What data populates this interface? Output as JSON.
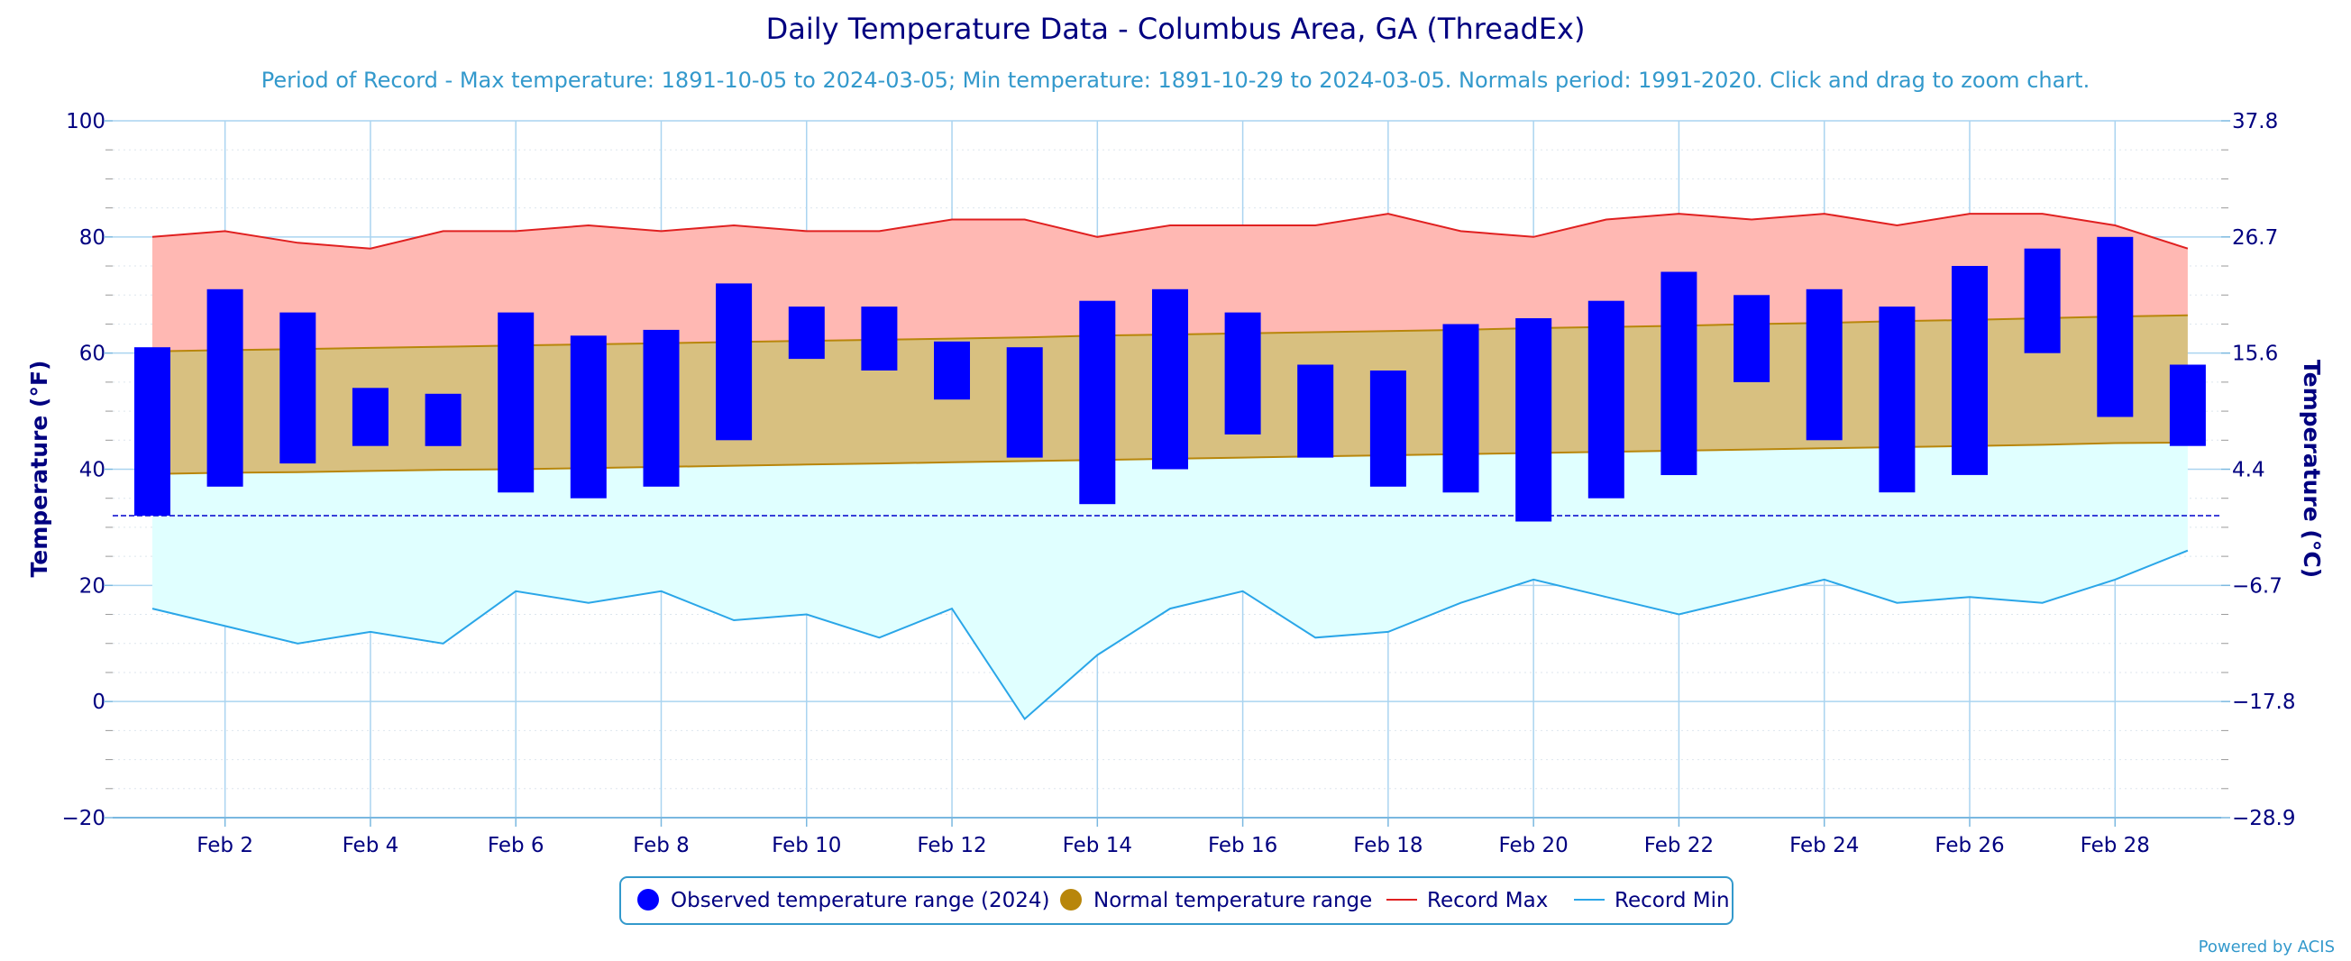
{
  "chart_data": {
    "type": "bar",
    "title": "Daily Temperature Data - Columbus Area, GA (ThreadEx)",
    "subtitle": "Period of Record - Max temperature: 1891-10-05 to 2024-03-05; Min temperature: 1891-10-29 to 2024-03-05. Normals period: 1991-2020. Click and drag to zoom chart.",
    "ylabel": "Temperature (°F)",
    "ylabel_right": "Temperature (°C)",
    "ylim": [
      -20,
      100
    ],
    "y_ticks": [
      "100",
      "80",
      "60",
      "40",
      "20",
      "0",
      "−20"
    ],
    "y_ticks_right": [
      "37.8",
      "26.7",
      "15.6",
      "4.4",
      "−6.7",
      "−17.8",
      "−28.9"
    ],
    "x_tick_labels": [
      "Feb 2",
      "Feb 4",
      "Feb 6",
      "Feb 8",
      "Feb 10",
      "Feb 12",
      "Feb 14",
      "Feb 16",
      "Feb 18",
      "Feb 20",
      "Feb 22",
      "Feb 24",
      "Feb 26",
      "Feb 28"
    ],
    "x_tick_days": [
      2,
      4,
      6,
      8,
      10,
      12,
      14,
      16,
      18,
      20,
      22,
      24,
      26,
      28
    ],
    "days": [
      1,
      2,
      3,
      4,
      5,
      6,
      7,
      8,
      9,
      10,
      11,
      12,
      13,
      14,
      15,
      16,
      17,
      18,
      19,
      20,
      21,
      22,
      23,
      24,
      25,
      26,
      27,
      28,
      29
    ],
    "freezing_line": 32,
    "grid": true,
    "legend_position": "bottom",
    "colors": {
      "observed": "#0000ff",
      "normal_fill": "#d8c080",
      "normal_line": "#b8860b",
      "record_max_fill": "#ffb8b3",
      "record_max_line": "#e02020",
      "record_min_fill": "#e0ffff",
      "record_min_line": "#2aa6e8",
      "grid": "#aad4f0",
      "text": "#000080"
    },
    "series": [
      {
        "name": "Observed temperature range (2024)",
        "type": "columnrange",
        "low": [
          32,
          37,
          41,
          44,
          44,
          36,
          35,
          37,
          45,
          59,
          57,
          52,
          42,
          34,
          40,
          46,
          42,
          37,
          36,
          31,
          35,
          39,
          55,
          45,
          36,
          39,
          60,
          49,
          44
        ],
        "high": [
          61,
          71,
          67,
          54,
          53,
          67,
          63,
          64,
          72,
          68,
          68,
          62,
          61,
          69,
          71,
          67,
          58,
          57,
          65,
          66,
          69,
          74,
          70,
          71,
          68,
          75,
          78,
          80,
          58
        ]
      },
      {
        "name": "Normal temperature range",
        "type": "arearange",
        "low": [
          39.2,
          39.4,
          39.5,
          39.7,
          39.9,
          40.0,
          40.2,
          40.4,
          40.6,
          40.8,
          41.0,
          41.2,
          41.4,
          41.6,
          41.8,
          42.0,
          42.2,
          42.4,
          42.6,
          42.8,
          43.0,
          43.2,
          43.4,
          43.6,
          43.8,
          44.0,
          44.2,
          44.5,
          44.6
        ],
        "high": [
          60.3,
          60.5,
          60.7,
          60.9,
          61.1,
          61.3,
          61.5,
          61.7,
          61.9,
          62.1,
          62.3,
          62.5,
          62.7,
          63.0,
          63.2,
          63.4,
          63.6,
          63.8,
          64.0,
          64.3,
          64.5,
          64.7,
          65.0,
          65.2,
          65.5,
          65.7,
          66.0,
          66.3,
          66.5
        ]
      },
      {
        "name": "Record Max",
        "type": "line",
        "values": [
          80,
          81,
          79,
          78,
          81,
          81,
          82,
          81,
          82,
          81,
          81,
          83,
          83,
          80,
          82,
          82,
          82,
          84,
          81,
          80,
          83,
          84,
          83,
          84,
          82,
          84,
          84,
          82,
          78
        ]
      },
      {
        "name": "Record Min",
        "type": "line",
        "values": [
          16,
          13,
          10,
          12,
          10,
          19,
          17,
          19,
          14,
          15,
          11,
          16,
          -3,
          8,
          16,
          19,
          11,
          12,
          17,
          21,
          18,
          15,
          18,
          21,
          17,
          18,
          17,
          21,
          26
        ]
      }
    ]
  },
  "footer": {
    "credit": "Powered by ACIS"
  }
}
